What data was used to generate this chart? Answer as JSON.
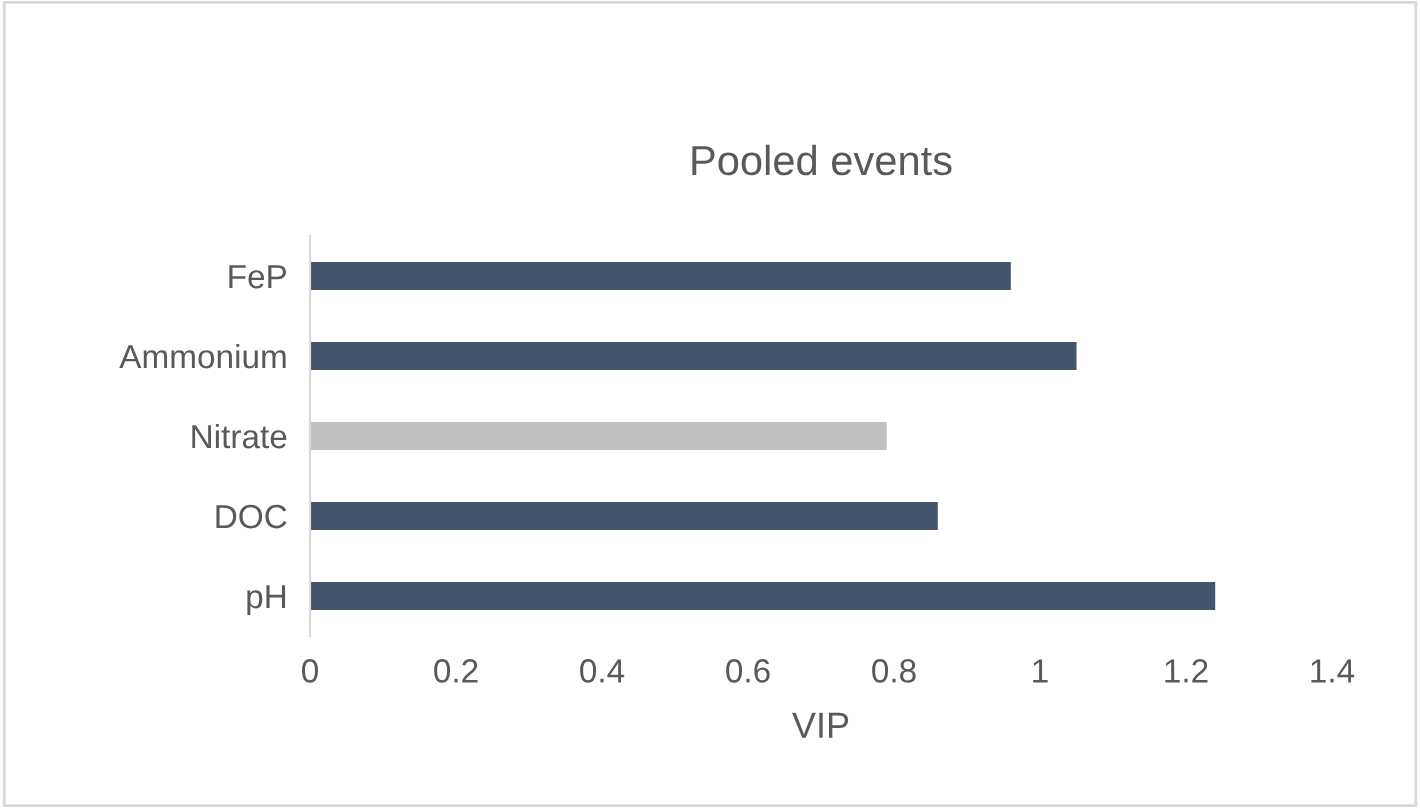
{
  "chart_data": {
    "type": "bar",
    "orientation": "horizontal",
    "title": "Pooled events",
    "xlabel": "VIP",
    "categories": [
      "FeP",
      "Ammonium",
      "Nitrate",
      "DOC",
      "pH"
    ],
    "values": [
      0.96,
      1.05,
      0.79,
      0.86,
      1.24
    ],
    "colors": [
      "#44546a",
      "#44546a",
      "#bfbfbf",
      "#44546a",
      "#44546a"
    ],
    "xlim": [
      0,
      1.4
    ],
    "xticks": [
      0,
      0.2,
      0.4,
      0.6,
      0.8,
      1,
      1.2,
      1.4
    ],
    "grid": false,
    "legend": false
  }
}
